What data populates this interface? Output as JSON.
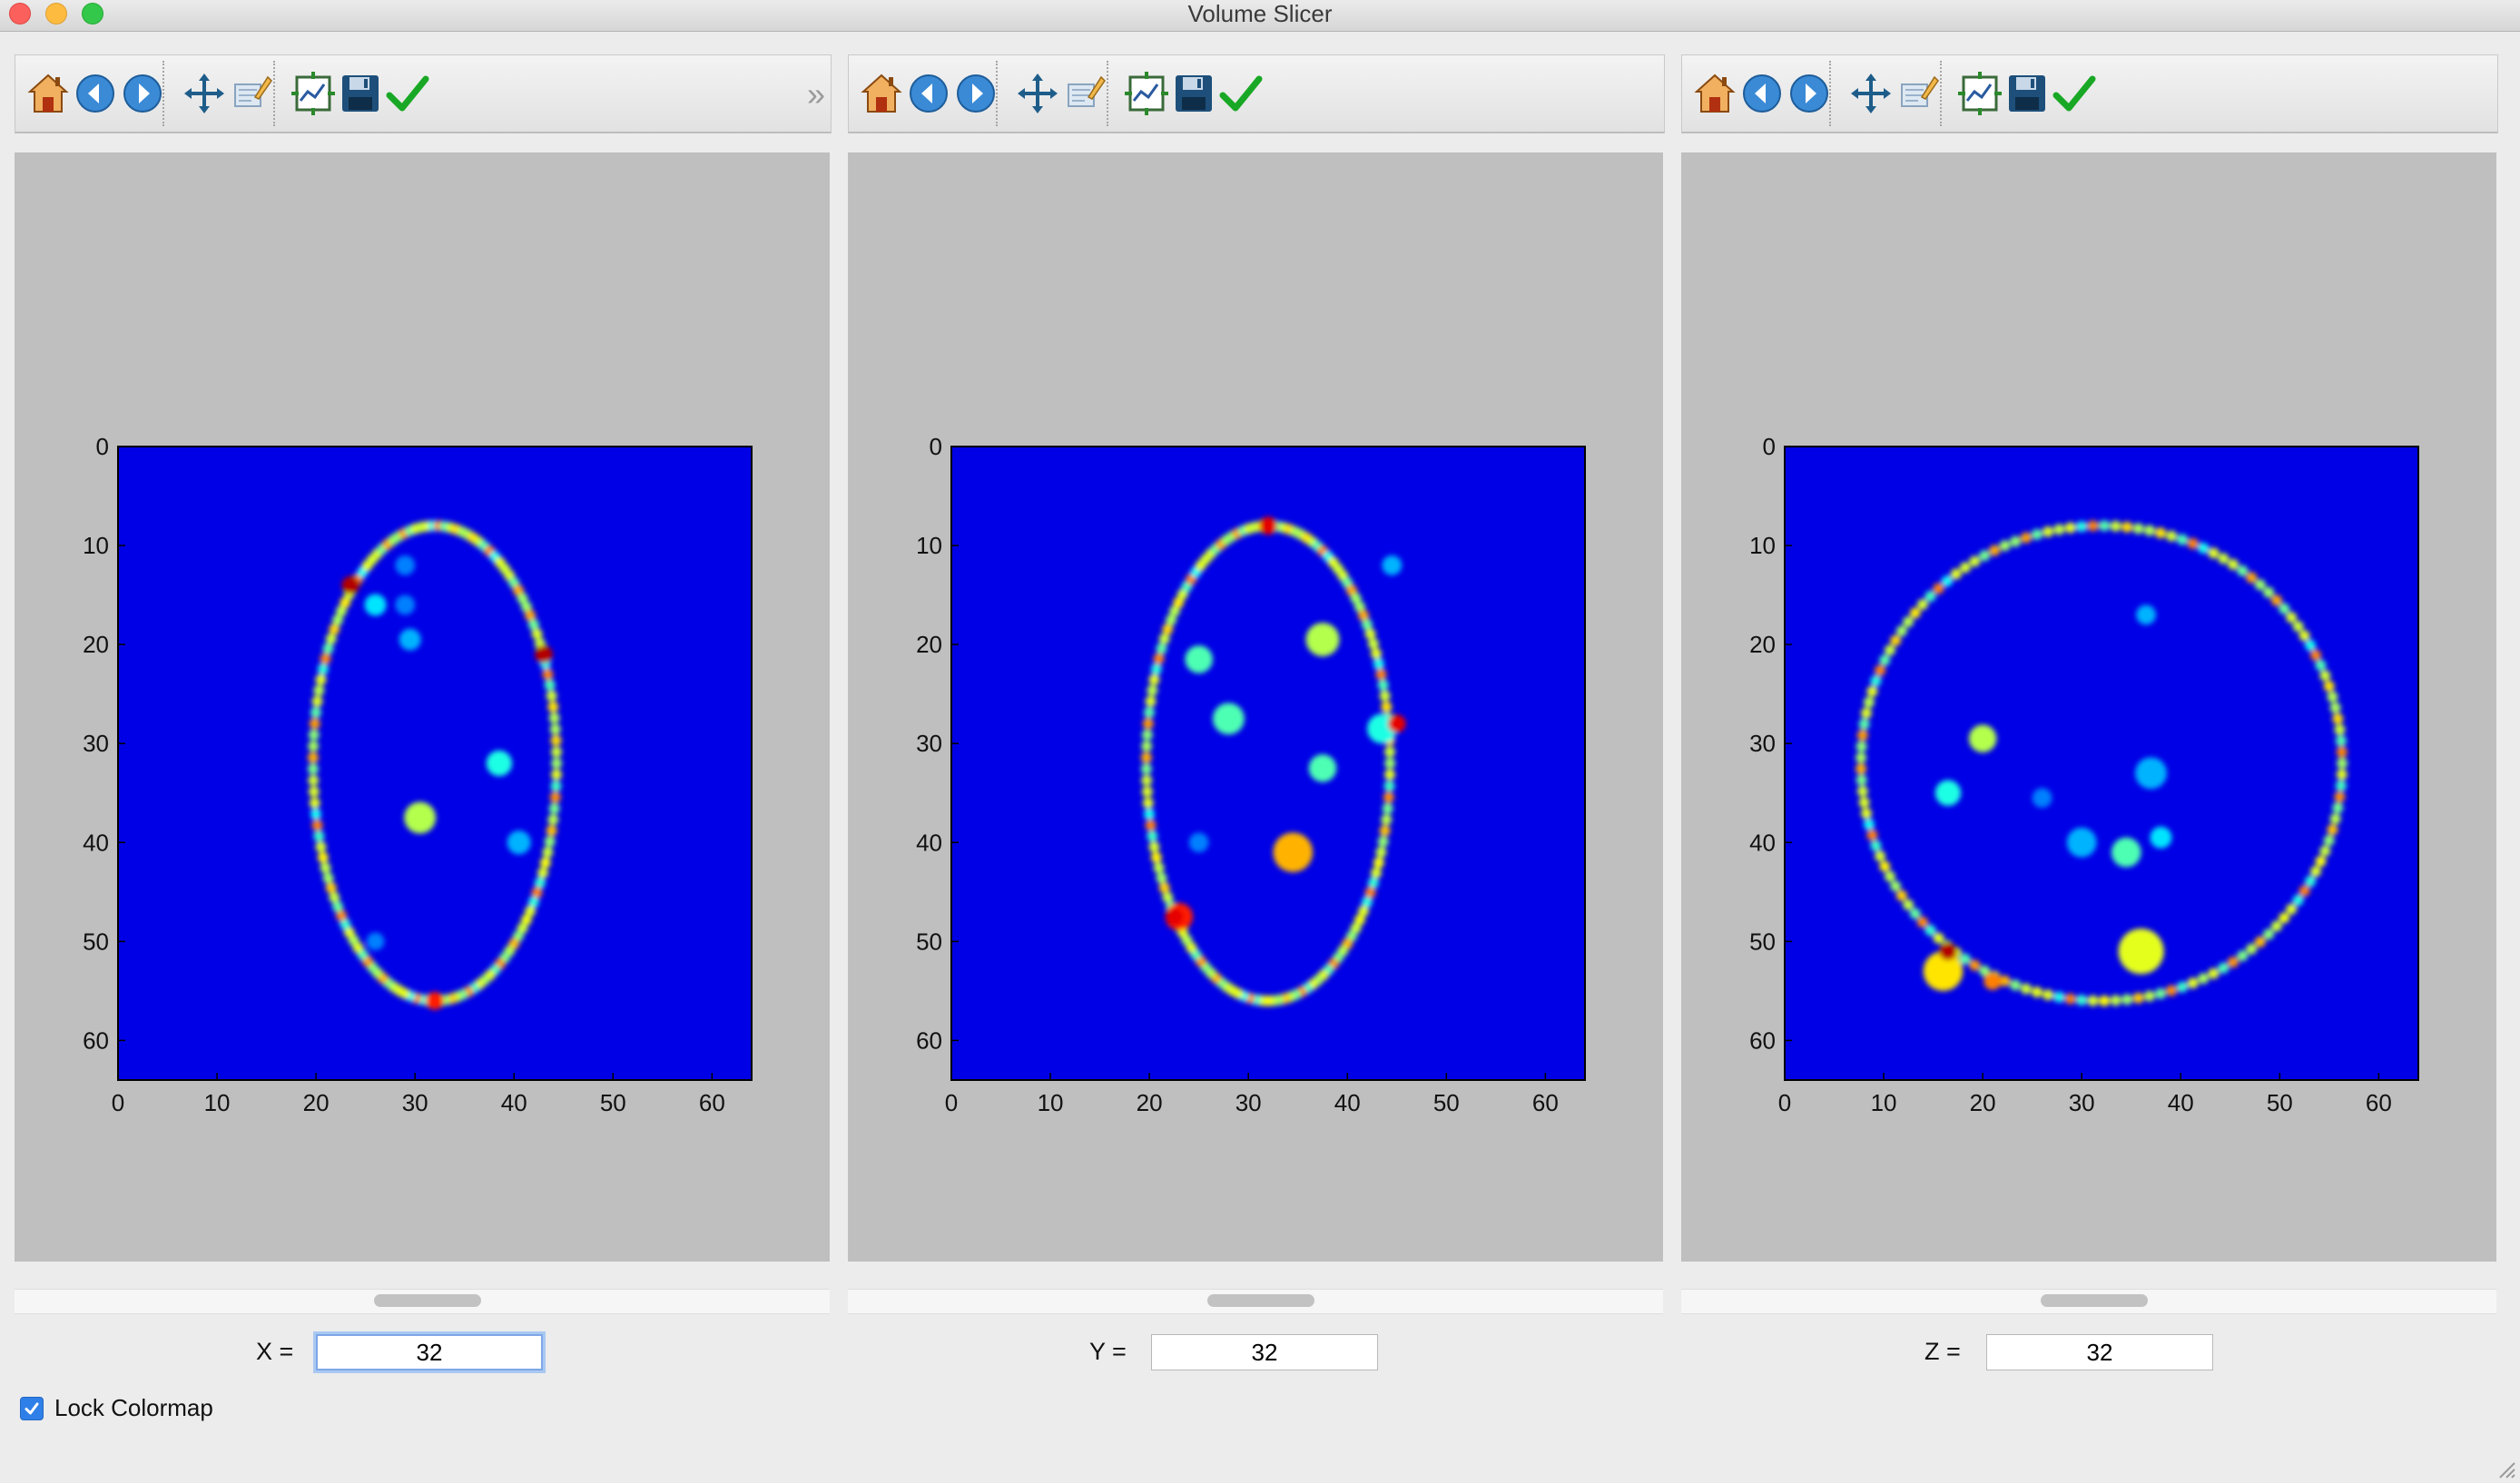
{
  "window": {
    "title": "Volume Slicer"
  },
  "toolbar": {
    "buttons": [
      {
        "name": "home",
        "icon": "home-icon",
        "tooltip": "Reset original view"
      },
      {
        "name": "back",
        "icon": "back-arrow-icon",
        "tooltip": "Back to previous view"
      },
      {
        "name": "forward",
        "icon": "forward-arrow-icon",
        "tooltip": "Forward to next view"
      },
      {
        "name": "pan",
        "icon": "pan-move-icon",
        "tooltip": "Pan axes"
      },
      {
        "name": "zoom",
        "icon": "zoom-rect-icon",
        "tooltip": "Zoom to rectangle"
      },
      {
        "name": "subplots",
        "icon": "subplots-icon",
        "tooltip": "Configure subplots"
      },
      {
        "name": "save",
        "icon": "save-floppy-icon",
        "tooltip": "Save the figure"
      },
      {
        "name": "customize",
        "icon": "checkmark-icon",
        "tooltip": "Customize"
      }
    ],
    "overflow_label": "»"
  },
  "panels": [
    {
      "axis": "X",
      "label": "X =",
      "value": "32",
      "focused": true
    },
    {
      "axis": "Y",
      "label": "Y =",
      "value": "32",
      "focused": false
    },
    {
      "axis": "Z",
      "label": "Z =",
      "value": "32",
      "focused": false
    }
  ],
  "lock_colormap": {
    "label": "Lock Colormap",
    "checked": true
  },
  "chart_data": [
    {
      "type": "heatmap",
      "colormap": "jet",
      "xlim": [
        0,
        64
      ],
      "ylim": [
        64,
        0
      ],
      "xticks": [
        "0",
        "10",
        "20",
        "30",
        "40",
        "50",
        "60"
      ],
      "yticks": [
        "0",
        "10",
        "20",
        "30",
        "40",
        "50",
        "60"
      ],
      "ring": {
        "cx": 32,
        "cy": 32,
        "rx": 12.3,
        "ry": 24
      },
      "blobs": [
        {
          "x": 30.5,
          "y": 37.5,
          "r": 1.6,
          "v": 0.55
        },
        {
          "x": 38.5,
          "y": 32,
          "r": 1.3,
          "v": 0.4
        },
        {
          "x": 40.5,
          "y": 40,
          "r": 1.2,
          "v": 0.3
        },
        {
          "x": 29.5,
          "y": 19.5,
          "r": 1.1,
          "v": 0.3
        },
        {
          "x": 26,
          "y": 16,
          "r": 1.1,
          "v": 0.35
        },
        {
          "x": 29,
          "y": 16,
          "r": 1.0,
          "v": 0.25
        },
        {
          "x": 29,
          "y": 12,
          "r": 1.0,
          "v": 0.25
        },
        {
          "x": 26,
          "y": 50,
          "r": 0.9,
          "v": 0.25
        }
      ],
      "hot": [
        {
          "x": 23.5,
          "y": 14,
          "v": 0.95
        },
        {
          "x": 43,
          "y": 21,
          "v": 0.95
        },
        {
          "x": 32,
          "y": 56,
          "v": 0.85
        }
      ]
    },
    {
      "type": "heatmap",
      "colormap": "jet",
      "xlim": [
        0,
        64
      ],
      "ylim": [
        64,
        0
      ],
      "xticks": [
        "0",
        "10",
        "20",
        "30",
        "40",
        "50",
        "60"
      ],
      "yticks": [
        "0",
        "10",
        "20",
        "30",
        "40",
        "50",
        "60"
      ],
      "ring": {
        "cx": 32,
        "cy": 32,
        "rx": 12.3,
        "ry": 24
      },
      "blobs": [
        {
          "x": 34.5,
          "y": 41,
          "r": 2.0,
          "v": 0.7
        },
        {
          "x": 37.5,
          "y": 32.5,
          "r": 1.4,
          "v": 0.45
        },
        {
          "x": 37.5,
          "y": 19.5,
          "r": 1.7,
          "v": 0.55
        },
        {
          "x": 25,
          "y": 21.5,
          "r": 1.4,
          "v": 0.45
        },
        {
          "x": 28,
          "y": 27.5,
          "r": 1.6,
          "v": 0.45
        },
        {
          "x": 44.5,
          "y": 12,
          "r": 1.0,
          "v": 0.3
        },
        {
          "x": 43.5,
          "y": 28.5,
          "r": 1.5,
          "v": 0.4
        },
        {
          "x": 23,
          "y": 47.5,
          "r": 1.4,
          "v": 0.85
        },
        {
          "x": 25,
          "y": 40,
          "r": 1.0,
          "v": 0.25
        }
      ],
      "hot": [
        {
          "x": 32,
          "y": 8,
          "v": 0.9
        },
        {
          "x": 22.5,
          "y": 47.5,
          "v": 0.9
        },
        {
          "x": 45,
          "y": 28,
          "v": 0.9
        }
      ]
    },
    {
      "type": "heatmap",
      "colormap": "jet",
      "xlim": [
        0,
        64
      ],
      "ylim": [
        64,
        0
      ],
      "xticks": [
        "0",
        "10",
        "20",
        "30",
        "40",
        "50",
        "60"
      ],
      "yticks": [
        "0",
        "10",
        "20",
        "30",
        "40",
        "50",
        "60"
      ],
      "ring": {
        "cx": 32,
        "cy": 32,
        "rx": 24.3,
        "ry": 24
      },
      "blobs": [
        {
          "x": 36,
          "y": 51,
          "r": 2.3,
          "v": 0.6
        },
        {
          "x": 16,
          "y": 53,
          "r": 2.0,
          "v": 0.65
        },
        {
          "x": 20,
          "y": 29.5,
          "r": 1.4,
          "v": 0.55
        },
        {
          "x": 16.5,
          "y": 35,
          "r": 1.3,
          "v": 0.4
        },
        {
          "x": 34.5,
          "y": 41,
          "r": 1.5,
          "v": 0.45
        },
        {
          "x": 38,
          "y": 39.5,
          "r": 1.1,
          "v": 0.35
        },
        {
          "x": 37,
          "y": 33,
          "r": 1.6,
          "v": 0.3
        },
        {
          "x": 30,
          "y": 40,
          "r": 1.5,
          "v": 0.3
        },
        {
          "x": 36.5,
          "y": 17,
          "r": 1.0,
          "v": 0.3
        },
        {
          "x": 26,
          "y": 35.5,
          "r": 1.0,
          "v": 0.25
        }
      ],
      "hot": [
        {
          "x": 16.5,
          "y": 51,
          "v": 0.95
        },
        {
          "x": 21,
          "y": 54,
          "v": 0.75
        }
      ]
    }
  ]
}
